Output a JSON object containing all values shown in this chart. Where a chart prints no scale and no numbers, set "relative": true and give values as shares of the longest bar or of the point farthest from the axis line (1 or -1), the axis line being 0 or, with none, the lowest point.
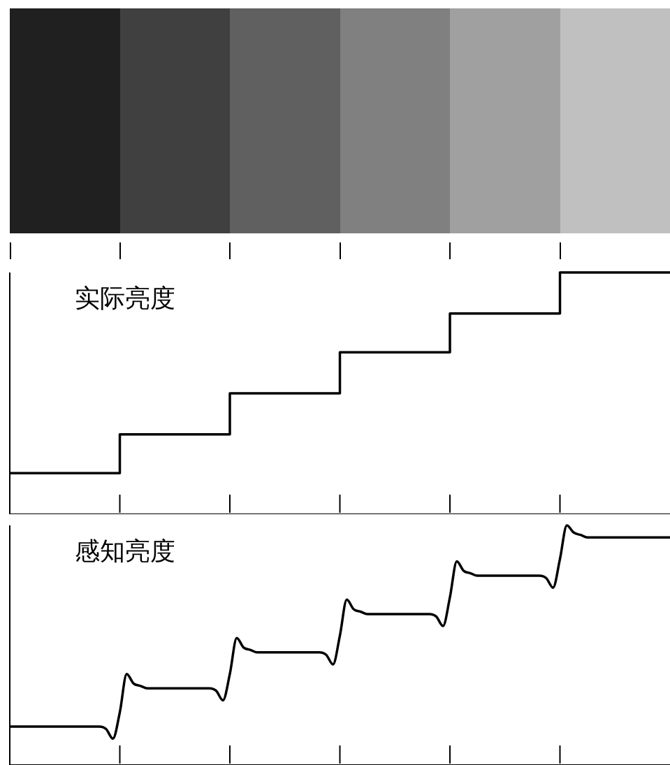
{
  "chart_data": [
    {
      "type": "step",
      "title": "实际亮度",
      "relative": true,
      "color": "#000000",
      "categories": [
        null,
        null,
        null,
        null,
        null,
        null,
        null
      ],
      "values": [
        0.17,
        0.33,
        0.5,
        0.67,
        0.83,
        1,
        1
      ]
    },
    {
      "type": "line",
      "title": "感知亮度",
      "relative": true,
      "color": "#000000",
      "categories": [
        null,
        null,
        null,
        null,
        null,
        null,
        null,
        null,
        null,
        null,
        null,
        null,
        null,
        null,
        null,
        null,
        null,
        null,
        null,
        null,
        null,
        null,
        null,
        null,
        null,
        null,
        null,
        null,
        null,
        null,
        null,
        null,
        null,
        null,
        null,
        null,
        null,
        null,
        null,
        null,
        null,
        null,
        null,
        null,
        null,
        null,
        null,
        null,
        null,
        null,
        null,
        null,
        null,
        null,
        null,
        null,
        null,
        null,
        null,
        null,
        null,
        null,
        null,
        null,
        null,
        null,
        null,
        null,
        null,
        null,
        null,
        null,
        null,
        null,
        null,
        null,
        null,
        null,
        null,
        null,
        null,
        null,
        null,
        null,
        null,
        null,
        null,
        null,
        null,
        null,
        null,
        null,
        null,
        null,
        null,
        null,
        null
      ],
      "values": [
        0.16,
        0.16,
        0.16,
        0.16,
        0.16,
        0.16,
        0.16,
        0.16,
        0.16,
        0.16,
        0.16,
        0.16,
        0.16,
        0.16,
        0.15,
        0.11,
        0.22,
        0.38,
        0.34,
        0.33,
        0.32,
        0.32,
        0.32,
        0.32,
        0.32,
        0.32,
        0.32,
        0.32,
        0.32,
        0.32,
        0.31,
        0.27,
        0.38,
        0.53,
        0.49,
        0.48,
        0.47,
        0.47,
        0.47,
        0.47,
        0.47,
        0.47,
        0.47,
        0.47,
        0.47,
        0.47,
        0.46,
        0.42,
        0.54,
        0.69,
        0.65,
        0.64,
        0.63,
        0.63,
        0.63,
        0.63,
        0.63,
        0.63,
        0.63,
        0.63,
        0.63,
        0.63,
        0.62,
        0.58,
        0.7,
        0.85,
        0.81,
        0.8,
        0.79,
        0.79,
        0.79,
        0.79,
        0.79,
        0.79,
        0.79,
        0.79,
        0.79,
        0.79,
        0.78,
        0.74,
        0.86,
        1,
        0.97,
        0.96,
        0.95,
        0.95,
        0.95,
        0.95,
        0.95,
        0.95,
        0.95,
        0.95,
        0.95,
        0.95,
        0.95,
        0.95,
        0.95
      ]
    }
  ]
}
